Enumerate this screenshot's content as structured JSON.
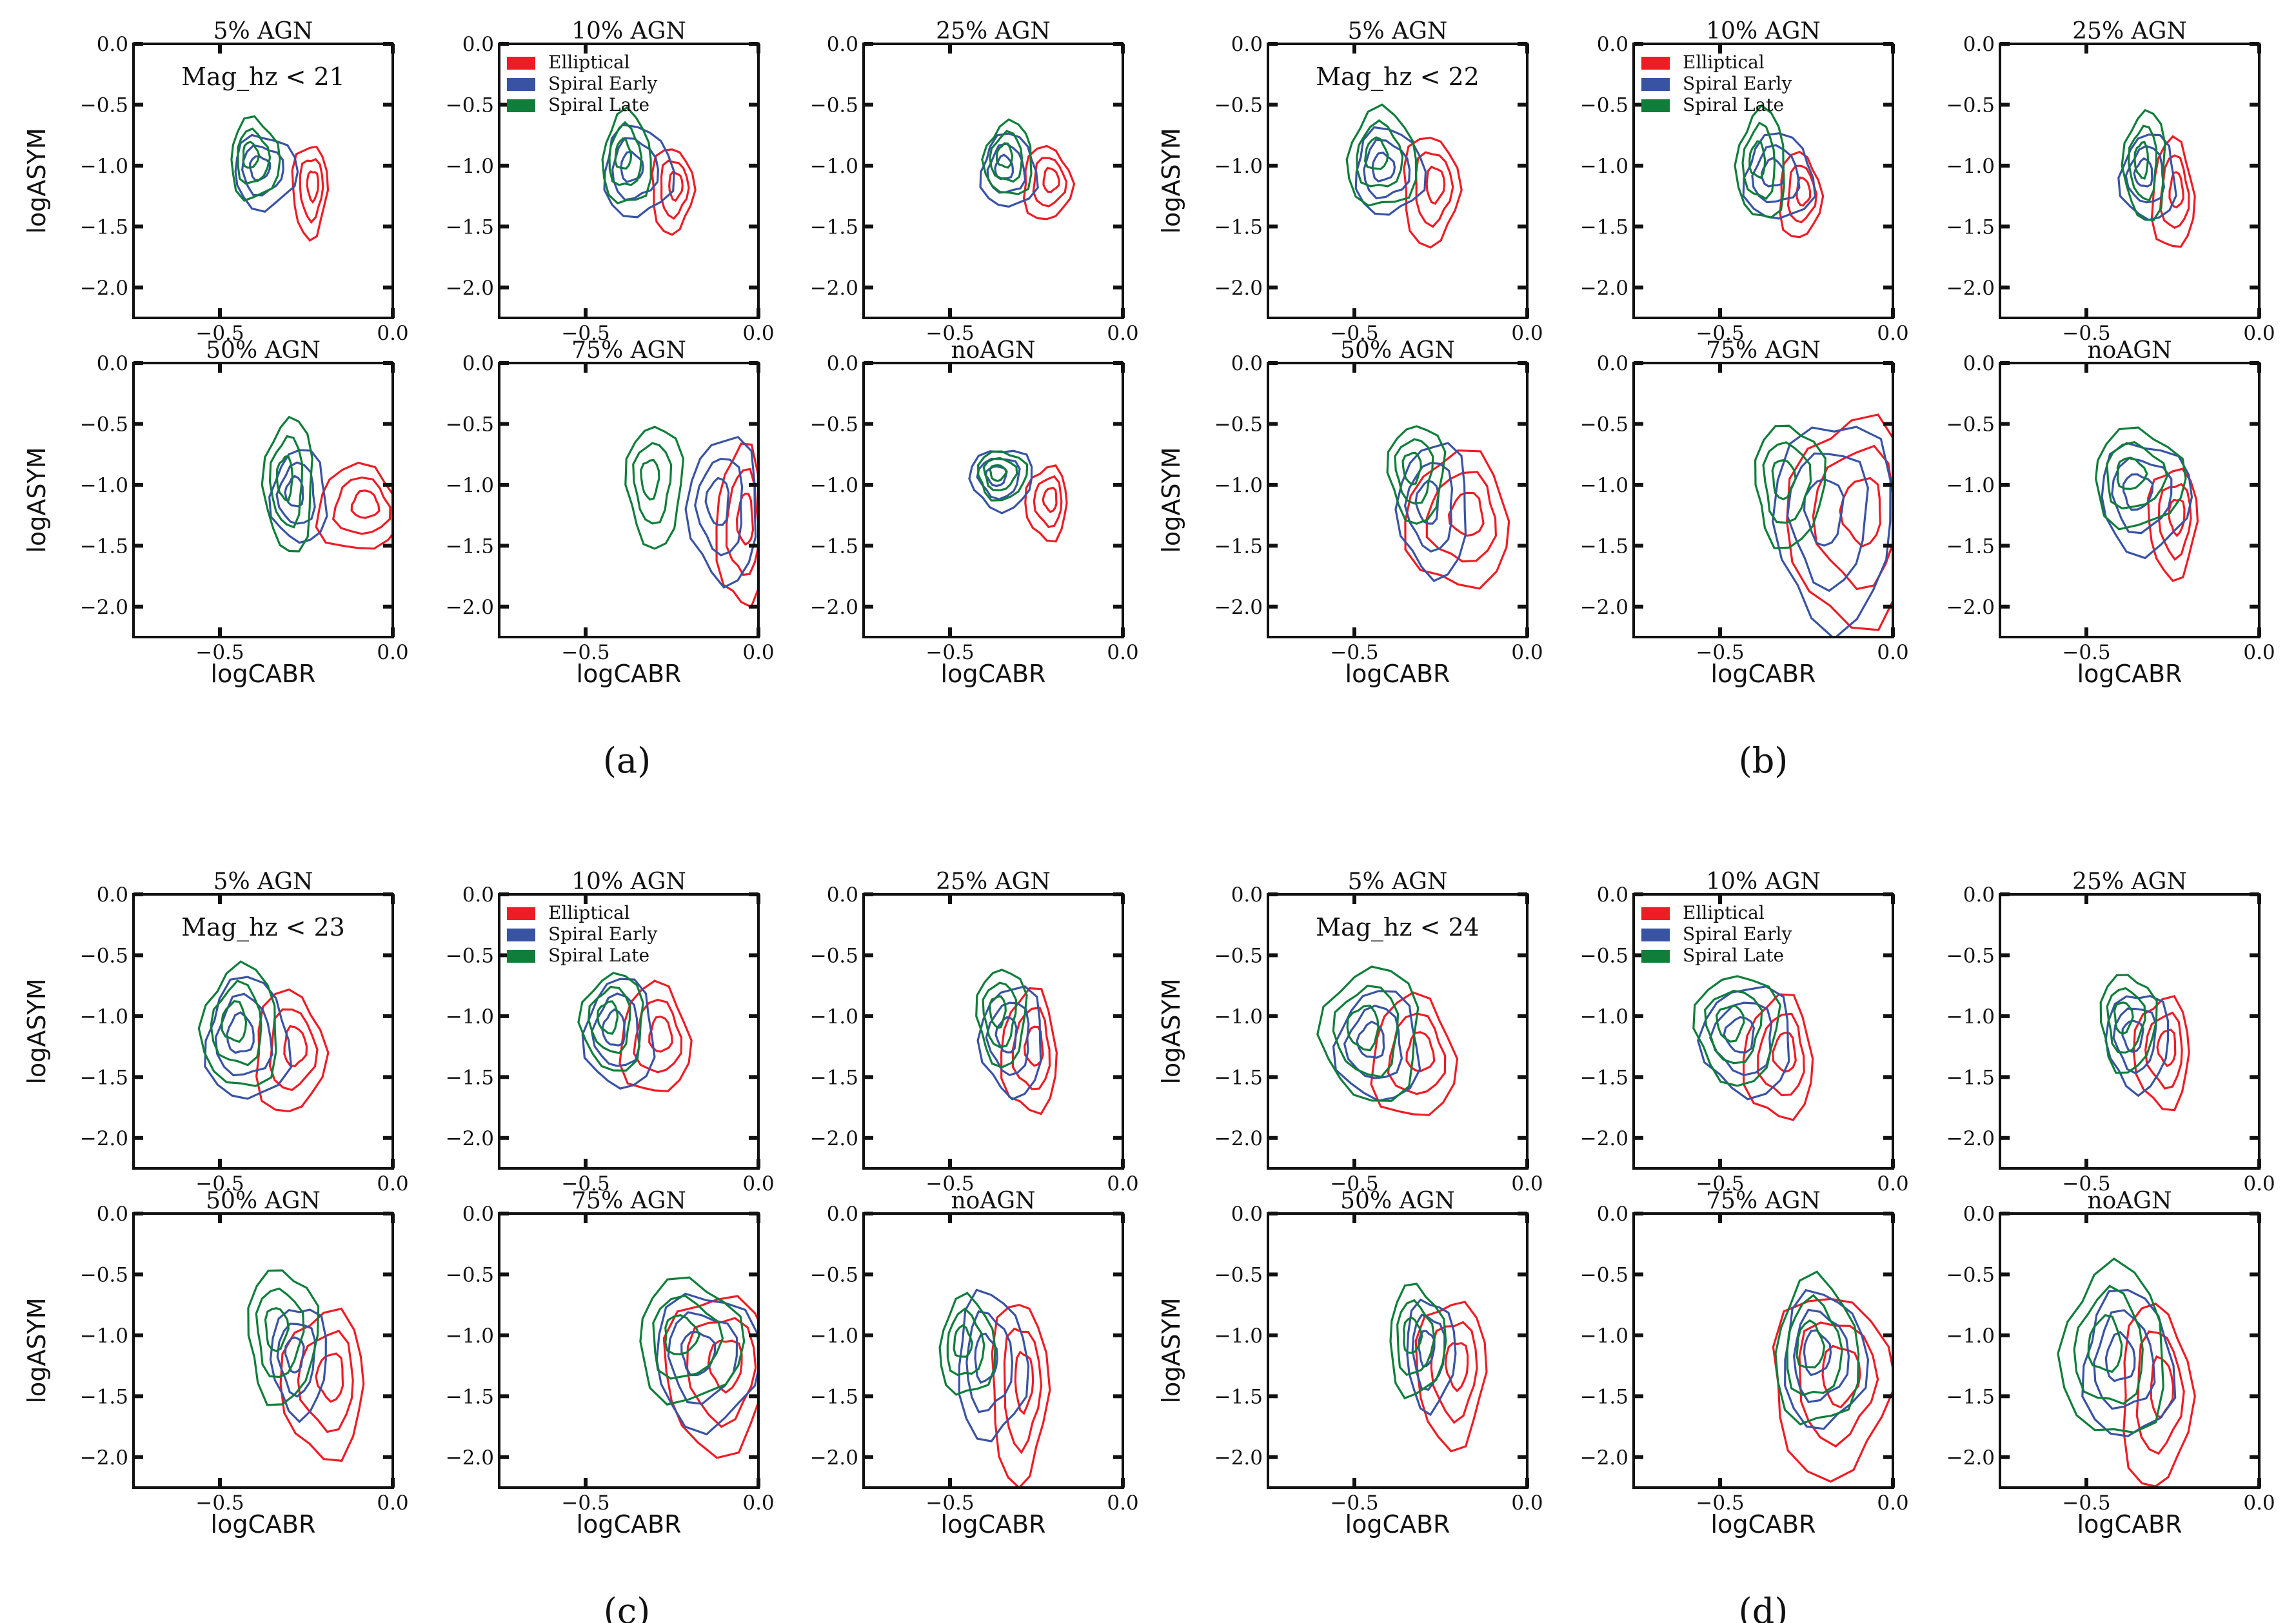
{
  "chart_data": {
    "type": "contour",
    "xlabel": "logCABR",
    "ylabel": "logASYM",
    "xlim": [
      -0.75,
      0.0
    ],
    "ylim": [
      -2.25,
      0.0
    ],
    "xticks": [
      "−0.5",
      "0.0"
    ],
    "xtick_values": [
      -0.5,
      0.0
    ],
    "yticks": [
      "0.0",
      "−0.5",
      "−1.0",
      "−1.5",
      "−2.0"
    ],
    "ytick_values": [
      0.0,
      -0.5,
      -1.0,
      -1.5,
      -2.0
    ],
    "legend": [
      {
        "label": "Elliptical",
        "color": "#ee1c25"
      },
      {
        "label": "Spiral Early",
        "color": "#3953a4"
      },
      {
        "label": "Spiral Late",
        "color": "#0f7e3a"
      }
    ],
    "contour_note": "each class: [center_x, center_y, outer_half_width, outer_half_height] in data units",
    "panels": [
      {
        "label": "(a)",
        "mag_label": "Mag_hz < 21",
        "subplots": [
          {
            "title": "5% AGN",
            "Elliptical": [
              -0.24,
              -1.2,
              0.05,
              0.38
            ],
            "Spiral Early": [
              -0.37,
              -1.05,
              0.09,
              0.3
            ],
            "Spiral Late": [
              -0.4,
              -0.95,
              0.07,
              0.33
            ]
          },
          {
            "title": "10% AGN",
            "Elliptical": [
              -0.25,
              -1.2,
              0.06,
              0.35
            ],
            "Spiral Early": [
              -0.35,
              -1.05,
              0.1,
              0.37
            ],
            "Spiral Late": [
              -0.38,
              -0.95,
              0.07,
              0.38
            ]
          },
          {
            "title": "25% AGN",
            "Elliptical": [
              -0.22,
              -1.15,
              0.07,
              0.3
            ],
            "Spiral Early": [
              -0.33,
              -1.05,
              0.08,
              0.3
            ],
            "Spiral Late": [
              -0.33,
              -0.95,
              0.07,
              0.3
            ]
          },
          {
            "title": "50% AGN",
            "Elliptical": [
              -0.1,
              -1.2,
              0.12,
              0.35
            ],
            "Spiral Early": [
              -0.27,
              -1.1,
              0.08,
              0.38
            ],
            "Spiral Late": [
              -0.3,
              -1.0,
              0.07,
              0.55
            ]
          },
          {
            "title": "75% AGN",
            "Elliptical": [
              -0.05,
              -1.35,
              0.07,
              0.65
            ],
            "Spiral Early": [
              -0.1,
              -1.2,
              0.1,
              0.6
            ],
            "Spiral Late": [
              -0.3,
              -1.0,
              0.08,
              0.5
            ]
          },
          {
            "title": "noAGN",
            "Elliptical": [
              -0.22,
              -1.15,
              0.06,
              0.3
            ],
            "Spiral Early": [
              -0.35,
              -0.95,
              0.09,
              0.25
            ],
            "Spiral Late": [
              -0.35,
              -0.92,
              0.07,
              0.2
            ]
          }
        ]
      },
      {
        "label": "(b)",
        "mag_label": "Mag_hz < 22",
        "subplots": [
          {
            "title": "5% AGN",
            "Elliptical": [
              -0.28,
              -1.2,
              0.08,
              0.45
            ],
            "Spiral Early": [
              -0.4,
              -1.05,
              0.1,
              0.35
            ],
            "Spiral Late": [
              -0.42,
              -0.95,
              0.1,
              0.4
            ]
          },
          {
            "title": "10% AGN",
            "Elliptical": [
              -0.27,
              -1.25,
              0.06,
              0.35
            ],
            "Spiral Early": [
              -0.33,
              -1.1,
              0.1,
              0.35
            ],
            "Spiral Late": [
              -0.38,
              -1.0,
              0.07,
              0.45
            ]
          },
          {
            "title": "25% AGN",
            "Elliptical": [
              -0.25,
              -1.25,
              0.06,
              0.45
            ],
            "Spiral Early": [
              -0.32,
              -1.1,
              0.08,
              0.35
            ],
            "Spiral Late": [
              -0.33,
              -1.0,
              0.06,
              0.45
            ]
          },
          {
            "title": "50% AGN",
            "Elliptical": [
              -0.2,
              -1.3,
              0.15,
              0.55
            ],
            "Spiral Early": [
              -0.27,
              -1.2,
              0.1,
              0.55
            ],
            "Spiral Late": [
              -0.32,
              -0.9,
              0.08,
              0.4
            ]
          },
          {
            "title": "75% AGN",
            "Elliptical": [
              -0.12,
              -1.3,
              0.18,
              0.85
            ],
            "Spiral Early": [
              -0.17,
              -1.3,
              0.17,
              0.85
            ],
            "Spiral Late": [
              -0.3,
              -1.0,
              0.1,
              0.5
            ]
          },
          {
            "title": "noAGN",
            "Elliptical": [
              -0.25,
              -1.3,
              0.07,
              0.45
            ],
            "Spiral Early": [
              -0.33,
              -1.1,
              0.13,
              0.45
            ],
            "Spiral Late": [
              -0.35,
              -0.95,
              0.13,
              0.4
            ]
          }
        ]
      },
      {
        "label": "(c)",
        "mag_label": "Mag_hz < 23",
        "subplots": [
          {
            "title": "5% AGN",
            "Elliptical": [
              -0.3,
              -1.3,
              0.1,
              0.5
            ],
            "Spiral Early": [
              -0.42,
              -1.2,
              0.12,
              0.5
            ],
            "Spiral Late": [
              -0.44,
              -1.1,
              0.11,
              0.5
            ]
          },
          {
            "title": "10% AGN",
            "Elliptical": [
              -0.3,
              -1.2,
              0.1,
              0.45
            ],
            "Spiral Early": [
              -0.4,
              -1.15,
              0.1,
              0.45
            ],
            "Spiral Late": [
              -0.42,
              -1.05,
              0.09,
              0.4
            ]
          },
          {
            "title": "25% AGN",
            "Elliptical": [
              -0.27,
              -1.3,
              0.08,
              0.5
            ],
            "Spiral Early": [
              -0.32,
              -1.2,
              0.09,
              0.45
            ],
            "Spiral Late": [
              -0.35,
              -1.0,
              0.07,
              0.4
            ]
          },
          {
            "title": "50% AGN",
            "Elliptical": [
              -0.2,
              -1.4,
              0.12,
              0.6
            ],
            "Spiral Early": [
              -0.27,
              -1.2,
              0.08,
              0.45
            ],
            "Spiral Late": [
              -0.32,
              -1.0,
              0.1,
              0.55
            ]
          },
          {
            "title": "75% AGN",
            "Elliptical": [
              -0.12,
              -1.3,
              0.15,
              0.65
            ],
            "Spiral Early": [
              -0.15,
              -1.2,
              0.15,
              0.55
            ],
            "Spiral Late": [
              -0.2,
              -1.05,
              0.15,
              0.5
            ]
          },
          {
            "title": "noAGN",
            "Elliptical": [
              -0.3,
              -1.45,
              0.08,
              0.75
            ],
            "Spiral Early": [
              -0.38,
              -1.25,
              0.1,
              0.6
            ],
            "Spiral Late": [
              -0.45,
              -1.1,
              0.08,
              0.4
            ]
          }
        ]
      },
      {
        "label": "(d)",
        "mag_label": "Mag_hz < 24",
        "subplots": [
          {
            "title": "5% AGN",
            "Elliptical": [
              -0.33,
              -1.35,
              0.12,
              0.5
            ],
            "Spiral Early": [
              -0.43,
              -1.25,
              0.12,
              0.45
            ],
            "Spiral Late": [
              -0.45,
              -1.15,
              0.14,
              0.55
            ]
          },
          {
            "title": "10% AGN",
            "Elliptical": [
              -0.33,
              -1.35,
              0.1,
              0.5
            ],
            "Spiral Early": [
              -0.42,
              -1.2,
              0.13,
              0.45
            ],
            "Spiral Late": [
              -0.45,
              -1.1,
              0.12,
              0.45
            ]
          },
          {
            "title": "25% AGN",
            "Elliptical": [
              -0.28,
              -1.3,
              0.08,
              0.45
            ],
            "Spiral Early": [
              -0.35,
              -1.2,
              0.09,
              0.4
            ],
            "Spiral Late": [
              -0.38,
              -1.05,
              0.08,
              0.4
            ]
          },
          {
            "title": "50% AGN",
            "Elliptical": [
              -0.22,
              -1.3,
              0.1,
              0.6
            ],
            "Spiral Early": [
              -0.28,
              -1.15,
              0.07,
              0.45
            ],
            "Spiral Late": [
              -0.32,
              -1.05,
              0.08,
              0.45
            ]
          },
          {
            "title": "75% AGN",
            "Elliptical": [
              -0.18,
              -1.4,
              0.17,
              0.75
            ],
            "Spiral Early": [
              -0.2,
              -1.2,
              0.12,
              0.55
            ],
            "Spiral Late": [
              -0.22,
              -1.15,
              0.12,
              0.6
            ]
          },
          {
            "title": "noAGN",
            "Elliptical": [
              -0.3,
              -1.5,
              0.1,
              0.75
            ],
            "Spiral Early": [
              -0.38,
              -1.25,
              0.13,
              0.6
            ],
            "Spiral Late": [
              -0.42,
              -1.15,
              0.15,
              0.7
            ]
          }
        ]
      }
    ]
  }
}
